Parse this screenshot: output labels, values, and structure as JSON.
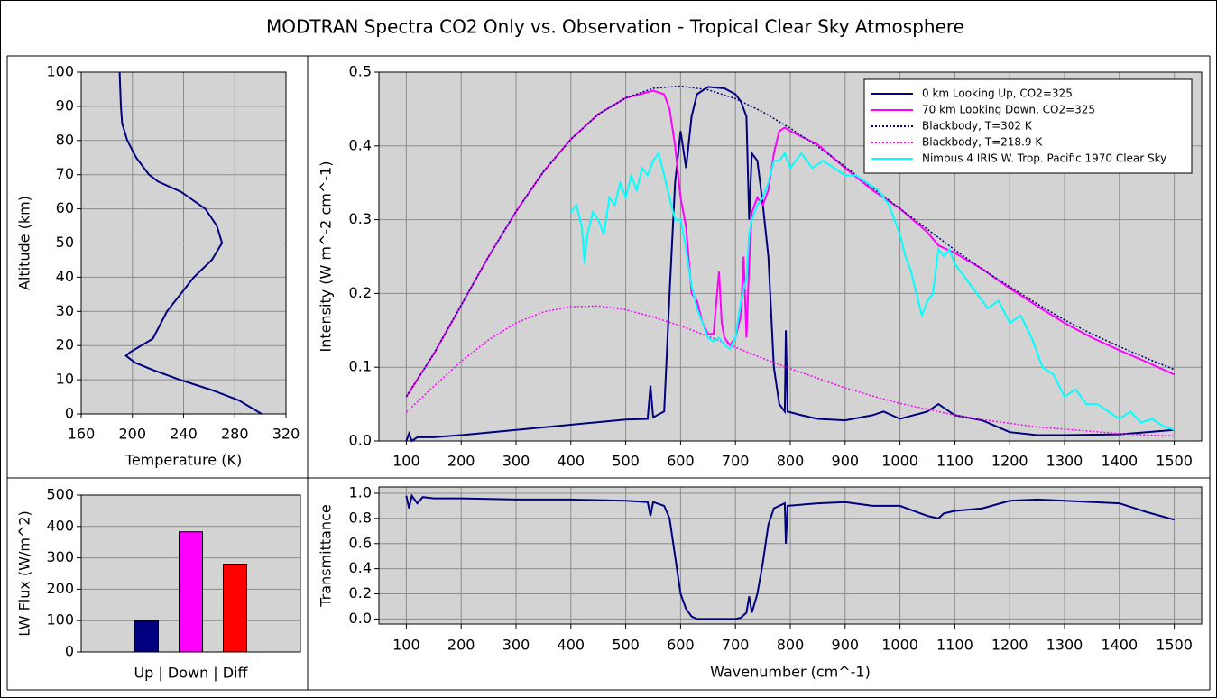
{
  "title": "MODTRAN Spectra CO2 Only vs. Observation - Tropical Clear Sky Atmosphere",
  "chart_data": [
    {
      "type": "line",
      "xlabel": "Temperature (K)",
      "ylabel": "Altitude (km)",
      "xlim": [
        160,
        320
      ],
      "ylim": [
        0,
        100
      ],
      "xticks": [
        160,
        200,
        240,
        280,
        320
      ],
      "yticks": [
        0,
        10,
        20,
        30,
        40,
        50,
        60,
        70,
        80,
        90,
        100
      ],
      "grid": true,
      "series": [
        {
          "color": "#000080",
          "x": [
            301,
            283,
            262,
            237,
            215,
            202,
            195,
            198,
            216,
            227,
            248,
            262,
            270,
            266,
            257,
            238,
            220,
            213,
            203,
            196,
            192,
            191,
            190
          ],
          "values": [
            0,
            4,
            7,
            10,
            13,
            15,
            17,
            18,
            22,
            30,
            40,
            45,
            50,
            55,
            60,
            65,
            68,
            70,
            75,
            80,
            85,
            90,
            100
          ]
        }
      ]
    },
    {
      "type": "line",
      "ylabel": "Intensity (W m^-2 cm^-1)",
      "xlim": [
        50,
        1550
      ],
      "ylim": [
        0,
        0.5
      ],
      "xticks": [
        100,
        200,
        300,
        400,
        500,
        600,
        700,
        800,
        900,
        1000,
        1100,
        1200,
        1300,
        1400,
        1500
      ],
      "yticks": [
        {
          "value": 0,
          "label": "0.0"
        },
        0.1,
        0.2,
        0.3,
        0.4,
        0.5
      ],
      "grid": true,
      "legend": "upper right",
      "series": [
        {
          "name": "0 km Looking Up, CO2=325",
          "color": "#000080",
          "style": "solid",
          "x": [
            100,
            105,
            110,
            120,
            150,
            200,
            300,
            400,
            500,
            540,
            545,
            550,
            570,
            580,
            590,
            600,
            610,
            620,
            630,
            650,
            680,
            700,
            710,
            720,
            725,
            730,
            740,
            750,
            760,
            770,
            780,
            790,
            792,
            795,
            820,
            850,
            900,
            950,
            970,
            1000,
            1050,
            1070,
            1080,
            1100,
            1150,
            1200,
            1250,
            1300,
            1400,
            1450,
            1500
          ],
          "values": [
            0.0,
            0.01,
            0.0,
            0.005,
            0.005,
            0.008,
            0.015,
            0.022,
            0.029,
            0.03,
            0.075,
            0.032,
            0.04,
            0.2,
            0.35,
            0.42,
            0.37,
            0.44,
            0.47,
            0.48,
            0.478,
            0.47,
            0.46,
            0.44,
            0.3,
            0.39,
            0.38,
            0.32,
            0.25,
            0.1,
            0.05,
            0.04,
            0.15,
            0.04,
            0.035,
            0.03,
            0.028,
            0.035,
            0.04,
            0.03,
            0.04,
            0.05,
            0.045,
            0.035,
            0.028,
            0.012,
            0.008,
            0.008,
            0.009,
            0.012,
            0.015
          ]
        },
        {
          "name": "70 km Looking Down, CO2=325",
          "color": "#ff00ff",
          "style": "solid",
          "x": [
            100,
            150,
            200,
            250,
            300,
            350,
            400,
            450,
            500,
            550,
            570,
            580,
            590,
            600,
            610,
            620,
            630,
            640,
            650,
            660,
            670,
            675,
            680,
            690,
            700,
            710,
            715,
            720,
            725,
            730,
            740,
            750,
            760,
            770,
            780,
            790,
            800,
            850,
            900,
            950,
            1000,
            1050,
            1070,
            1100,
            1150,
            1200,
            1250,
            1300,
            1350,
            1400,
            1450,
            1500
          ],
          "values": [
            0.06,
            0.118,
            0.184,
            0.25,
            0.311,
            0.365,
            0.409,
            0.443,
            0.465,
            0.475,
            0.47,
            0.45,
            0.4,
            0.33,
            0.29,
            0.2,
            0.19,
            0.16,
            0.145,
            0.145,
            0.23,
            0.16,
            0.14,
            0.13,
            0.14,
            0.17,
            0.25,
            0.14,
            0.24,
            0.31,
            0.33,
            0.32,
            0.34,
            0.39,
            0.42,
            0.425,
            0.42,
            0.402,
            0.37,
            0.34,
            0.315,
            0.283,
            0.265,
            0.255,
            0.233,
            0.207,
            0.183,
            0.16,
            0.14,
            0.123,
            0.107,
            0.09
          ]
        },
        {
          "name": "Blackbody, T=302 K",
          "color": "#000080",
          "style": "dotted",
          "x": [
            100,
            150,
            200,
            250,
            300,
            350,
            400,
            450,
            500,
            550,
            600,
            650,
            700,
            750,
            800,
            850,
            900,
            950,
            1000,
            1050,
            1100,
            1150,
            1200,
            1250,
            1300,
            1350,
            1400,
            1450,
            1500
          ],
          "values": [
            0.06,
            0.118,
            0.184,
            0.25,
            0.311,
            0.365,
            0.409,
            0.443,
            0.465,
            0.478,
            0.481,
            0.476,
            0.464,
            0.446,
            0.424,
            0.399,
            0.372,
            0.343,
            0.315,
            0.287,
            0.259,
            0.233,
            0.209,
            0.186,
            0.164,
            0.145,
            0.128,
            0.112,
            0.097
          ]
        },
        {
          "name": "Blackbody, T=218.9 K",
          "color": "#ff00ff",
          "style": "dotted",
          "x": [
            100,
            150,
            200,
            250,
            300,
            350,
            400,
            450,
            500,
            550,
            600,
            650,
            700,
            750,
            800,
            850,
            900,
            950,
            1000,
            1050,
            1100,
            1150,
            1200,
            1250,
            1300,
            1350,
            1400,
            1450,
            1500
          ],
          "values": [
            0.039,
            0.074,
            0.108,
            0.137,
            0.16,
            0.175,
            0.182,
            0.183,
            0.178,
            0.168,
            0.156,
            0.142,
            0.127,
            0.112,
            0.098,
            0.085,
            0.072,
            0.061,
            0.051,
            0.043,
            0.035,
            0.029,
            0.024,
            0.019,
            0.016,
            0.013,
            0.01,
            0.008,
            0.007
          ]
        },
        {
          "name": "Nimbus 4 IRIS W. Trop. Pacific 1970 Clear Sky",
          "color": "#00ffff",
          "style": "solid",
          "x": [
            400,
            410,
            420,
            425,
            430,
            440,
            450,
            460,
            470,
            480,
            490,
            500,
            510,
            520,
            530,
            540,
            550,
            560,
            570,
            580,
            590,
            600,
            610,
            620,
            630,
            640,
            650,
            660,
            670,
            680,
            690,
            700,
            710,
            720,
            725,
            730,
            740,
            750,
            760,
            770,
            780,
            790,
            800,
            820,
            840,
            860,
            880,
            900,
            920,
            940,
            960,
            980,
            990,
            1000,
            1010,
            1020,
            1030,
            1040,
            1050,
            1060,
            1070,
            1080,
            1090,
            1100,
            1120,
            1140,
            1160,
            1180,
            1200,
            1220,
            1240,
            1260,
            1280,
            1300,
            1320,
            1340,
            1360,
            1380,
            1400,
            1420,
            1440,
            1460,
            1480,
            1500
          ],
          "values": [
            0.31,
            0.32,
            0.29,
            0.24,
            0.28,
            0.31,
            0.3,
            0.28,
            0.33,
            0.32,
            0.35,
            0.33,
            0.36,
            0.34,
            0.37,
            0.36,
            0.38,
            0.39,
            0.36,
            0.33,
            0.3,
            0.3,
            0.26,
            0.21,
            0.18,
            0.16,
            0.14,
            0.135,
            0.14,
            0.13,
            0.125,
            0.14,
            0.19,
            0.22,
            0.28,
            0.3,
            0.32,
            0.33,
            0.35,
            0.38,
            0.38,
            0.39,
            0.37,
            0.39,
            0.37,
            0.38,
            0.37,
            0.36,
            0.36,
            0.35,
            0.34,
            0.32,
            0.3,
            0.28,
            0.25,
            0.23,
            0.2,
            0.17,
            0.19,
            0.2,
            0.26,
            0.25,
            0.26,
            0.24,
            0.22,
            0.2,
            0.18,
            0.19,
            0.16,
            0.17,
            0.14,
            0.1,
            0.09,
            0.06,
            0.07,
            0.05,
            0.05,
            0.04,
            0.03,
            0.04,
            0.025,
            0.03,
            0.02,
            0.015
          ]
        }
      ]
    },
    {
      "type": "bar",
      "xlabel": "Up | Down | Diff",
      "ylabel": "LW Flux (W/m^2)",
      "ylim": [
        0,
        500
      ],
      "yticks": [
        0,
        100,
        200,
        300,
        400,
        500
      ],
      "grid": true,
      "values": [
        100,
        383,
        280
      ],
      "colors": [
        "#000080",
        "#ff00ff",
        "#ff0000"
      ]
    },
    {
      "type": "line",
      "xlabel": "Wavenumber (cm^-1)",
      "ylabel": "Transmittance",
      "xlim": [
        50,
        1550
      ],
      "ylim": [
        -0.04,
        1.05
      ],
      "xticks": [
        100,
        200,
        300,
        400,
        500,
        600,
        700,
        800,
        900,
        1000,
        1100,
        1200,
        1300,
        1400,
        1500
      ],
      "yticks": [
        {
          "value": 0,
          "label": "0.0"
        },
        0.2,
        0.4,
        0.6,
        0.8,
        {
          "value": 1,
          "label": "1.0"
        }
      ],
      "grid": true,
      "series": [
        {
          "color": "#000080",
          "style": "solid",
          "x": [
            100,
            105,
            110,
            120,
            130,
            150,
            200,
            300,
            400,
            500,
            540,
            545,
            550,
            570,
            580,
            590,
            600,
            610,
            620,
            630,
            700,
            710,
            720,
            725,
            730,
            740,
            750,
            760,
            770,
            780,
            790,
            792,
            795,
            850,
            900,
            950,
            970,
            1000,
            1050,
            1070,
            1080,
            1100,
            1150,
            1200,
            1250,
            1300,
            1400,
            1450,
            1500
          ],
          "values": [
            0.98,
            0.88,
            0.98,
            0.92,
            0.97,
            0.96,
            0.96,
            0.95,
            0.95,
            0.94,
            0.93,
            0.82,
            0.93,
            0.9,
            0.8,
            0.5,
            0.2,
            0.08,
            0.02,
            0.0,
            0.0,
            0.01,
            0.05,
            0.18,
            0.05,
            0.2,
            0.45,
            0.75,
            0.88,
            0.9,
            0.92,
            0.6,
            0.9,
            0.92,
            0.93,
            0.9,
            0.9,
            0.9,
            0.82,
            0.8,
            0.84,
            0.86,
            0.88,
            0.94,
            0.95,
            0.94,
            0.92,
            0.85,
            0.79
          ]
        }
      ]
    }
  ]
}
